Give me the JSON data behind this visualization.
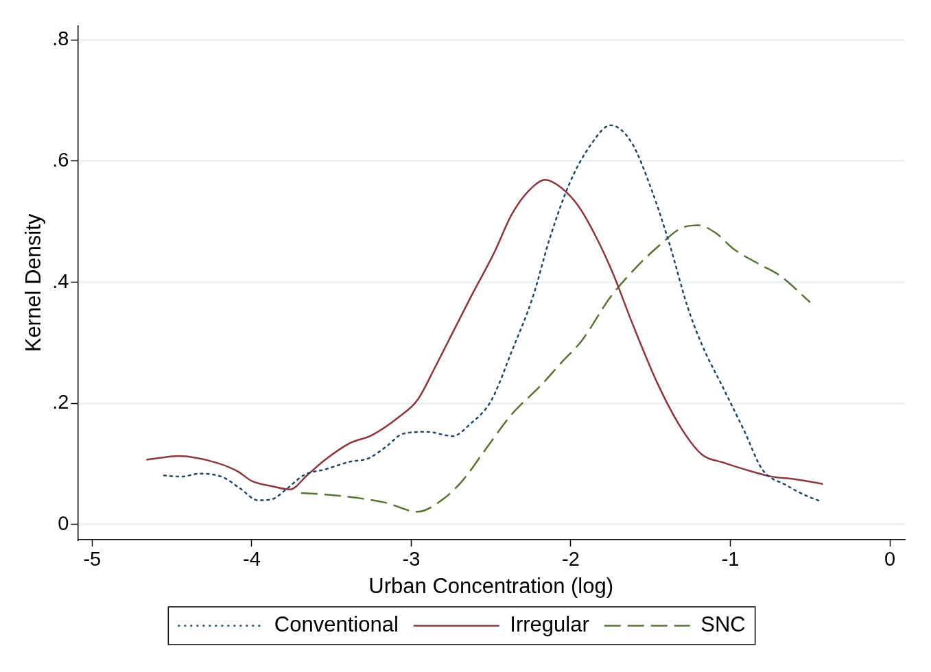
{
  "chart_data": {
    "type": "line",
    "xlabel": "Urban Concentration (log)",
    "ylabel": "Kernel Density",
    "xlim": [
      -5.09,
      0.09
    ],
    "xticks": [
      -5,
      -4,
      -3,
      -2,
      -1,
      0
    ],
    "ylim": [
      -0.025,
      0.823
    ],
    "yticks": [
      0,
      {
        "value": 0.2,
        "label": ".2"
      },
      {
        "value": 0.4,
        "label": ".4"
      },
      {
        "value": 0.6,
        "label": ".6"
      },
      {
        "value": 0.8,
        "label": ".8"
      }
    ],
    "grid": "y",
    "legend": "bottom",
    "marker": "none",
    "series": [
      {
        "name": "Conventional",
        "color": "#1a476f",
        "line_style": "dotted",
        "x": [
          -4.55,
          -4.44,
          -4.33,
          -4.18,
          -4.07,
          -3.96,
          -3.87,
          -3.78,
          -3.67,
          -3.54,
          -3.38,
          -3.27,
          -3.16,
          -3.05,
          -2.9,
          -2.74,
          -2.63,
          -2.5,
          -2.37,
          -2.24,
          -2.13,
          -2.01,
          -1.88,
          -1.75,
          -1.62,
          -1.49,
          -1.38,
          -1.27,
          -1.18,
          -1.04,
          -0.91,
          -0.8,
          -0.65,
          -0.52,
          -0.43
        ],
        "values": [
          0.081,
          0.079,
          0.084,
          0.078,
          0.059,
          0.04,
          0.042,
          0.059,
          0.082,
          0.091,
          0.104,
          0.109,
          0.128,
          0.15,
          0.153,
          0.146,
          0.166,
          0.204,
          0.286,
          0.374,
          0.474,
          0.562,
          0.625,
          0.659,
          0.631,
          0.55,
          0.462,
          0.361,
          0.298,
          0.223,
          0.153,
          0.091,
          0.065,
          0.047,
          0.038
        ]
      },
      {
        "name": "Irregular",
        "color": "#90353b",
        "line_style": "solid",
        "x": [
          -4.66,
          -4.46,
          -4.22,
          -4.09,
          -4.0,
          -3.87,
          -3.76,
          -3.65,
          -3.54,
          -3.38,
          -3.25,
          -3.07,
          -2.96,
          -2.85,
          -2.74,
          -2.63,
          -2.48,
          -2.37,
          -2.26,
          -2.16,
          -2.06,
          -1.95,
          -1.84,
          -1.73,
          -1.62,
          -1.46,
          -1.31,
          -1.18,
          -1.04,
          -0.87,
          -0.74,
          -0.6,
          -0.42
        ],
        "values": [
          0.107,
          0.113,
          0.102,
          0.088,
          0.072,
          0.063,
          0.058,
          0.082,
          0.107,
          0.135,
          0.147,
          0.179,
          0.206,
          0.26,
          0.317,
          0.374,
          0.449,
          0.512,
          0.552,
          0.569,
          0.556,
          0.525,
          0.474,
          0.411,
          0.336,
          0.235,
          0.16,
          0.116,
          0.102,
          0.088,
          0.079,
          0.075,
          0.067
        ]
      },
      {
        "name": "SNC",
        "color": "#55752f",
        "line_style": "dashed",
        "x": [
          -3.69,
          -3.51,
          -3.34,
          -3.16,
          -2.96,
          -2.81,
          -2.68,
          -2.54,
          -2.37,
          -2.19,
          -2.06,
          -1.93,
          -1.75,
          -1.57,
          -1.44,
          -1.31,
          -1.2,
          -1.09,
          -0.98,
          -0.82,
          -0.69,
          -0.5
        ],
        "values": [
          0.052,
          0.049,
          0.044,
          0.036,
          0.021,
          0.04,
          0.072,
          0.122,
          0.182,
          0.229,
          0.267,
          0.304,
          0.376,
          0.43,
          0.462,
          0.489,
          0.494,
          0.481,
          0.455,
          0.43,
          0.411,
          0.367
        ]
      }
    ]
  }
}
